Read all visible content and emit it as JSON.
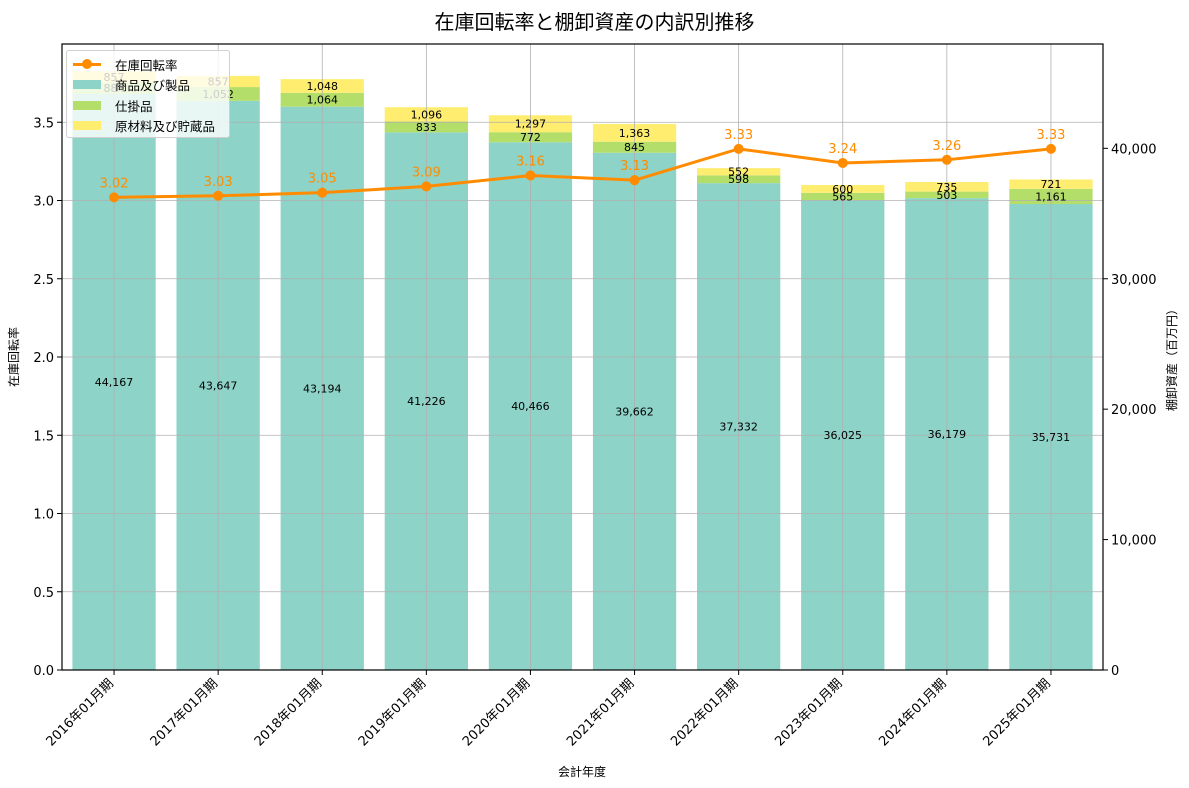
{
  "chart_data": {
    "type": "bar+line",
    "title": "在庫回転率と棚卸資産の内訳別推移",
    "xlabel": "会計年度",
    "ylabel_left": "在庫回転率",
    "ylabel_right": "棚卸資産（百万円）",
    "categories": [
      "2016年01月期",
      "2017年01月期",
      "2018年01月期",
      "2019年01月期",
      "2020年01月期",
      "2021年01月期",
      "2022年01月期",
      "2023年01月期",
      "2024年01月期",
      "2025年01月期"
    ],
    "bar_series": [
      {
        "name": "商品及び製品",
        "color": "#8dd3c7",
        "values": [
          44167,
          43647,
          43194,
          41226,
          40466,
          39662,
          37332,
          36025,
          36179,
          35731
        ]
      },
      {
        "name": "仕掛品",
        "color": "#b3de69",
        "values": [
          884,
          1052,
          1064,
          833,
          772,
          845,
          598,
          565,
          503,
          1161
        ]
      },
      {
        "name": "原材料及び貯蔵品",
        "color": "#ffed6f",
        "values": [
          857,
          857,
          1048,
          1096,
          1297,
          1363,
          552,
          600,
          735,
          721
        ]
      }
    ],
    "line_series": {
      "name": "在庫回転率",
      "color": "#ff8c00",
      "values": [
        3.02,
        3.03,
        3.05,
        3.09,
        3.16,
        3.13,
        3.33,
        3.24,
        3.26,
        3.33
      ]
    },
    "left_axis": {
      "ylim": [
        0,
        4.0
      ],
      "ticks": [
        "0.0",
        "0.5",
        "1.0",
        "1.5",
        "2.0",
        "2.5",
        "3.0",
        "3.5"
      ]
    },
    "right_axis": {
      "ylim": [
        0,
        48000
      ],
      "ticks": [
        "0",
        "10,000",
        "20,000",
        "30,000",
        "40,000"
      ]
    },
    "grid": true,
    "legend_position": "upper left",
    "legend": [
      "在庫回転率",
      "商品及び製品",
      "仕掛品",
      "原材料及び貯蔵品"
    ]
  }
}
